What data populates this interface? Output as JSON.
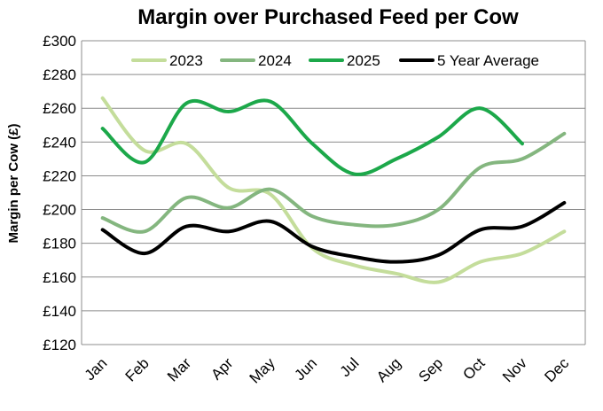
{
  "chart_data": {
    "type": "line",
    "title": "Margin over Purchased Feed per Cow",
    "xlabel": "",
    "ylabel": "Margin per Cow (£)",
    "categories": [
      "Jan",
      "Feb",
      "Mar",
      "Apr",
      "May",
      "Jun",
      "Jul",
      "Aug",
      "Sep",
      "Oct",
      "Nov",
      "Dec"
    ],
    "ylim": [
      120,
      300
    ],
    "ytick_step": 20,
    "ytick_prefix": "£",
    "grid": true,
    "smooth": true,
    "legend_position": "top",
    "series": [
      {
        "name": "2023",
        "color": "#c4dd9b",
        "values": [
          266,
          235,
          239,
          213,
          209,
          177,
          167,
          162,
          157,
          169,
          174,
          187
        ]
      },
      {
        "name": "2024",
        "color": "#84b67f",
        "values": [
          195,
          187,
          207,
          201,
          212,
          196,
          191,
          191,
          200,
          225,
          230,
          245
        ]
      },
      {
        "name": "2025",
        "color": "#1ca84a",
        "values": [
          248,
          228,
          263,
          258,
          264,
          239,
          221,
          230,
          243,
          260,
          239,
          null
        ]
      },
      {
        "name": "5 Year Average",
        "color": "#000000",
        "values": [
          188,
          174,
          190,
          187,
          193,
          178,
          172,
          169,
          173,
          188,
          190,
          204
        ]
      }
    ]
  }
}
